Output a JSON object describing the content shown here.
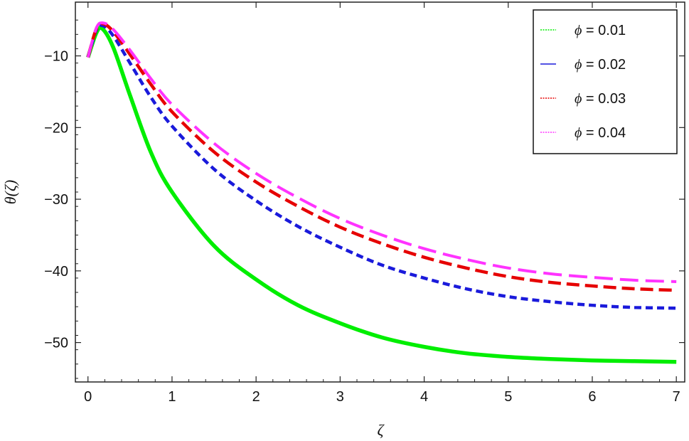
{
  "chart_data": {
    "type": "line",
    "xlabel": "ζ",
    "ylabel": "θ(ζ)",
    "xlim": [
      -0.15,
      7.1
    ],
    "ylim": [
      -55.5,
      -2.5
    ],
    "xticks": [
      0,
      1,
      2,
      3,
      4,
      5,
      6,
      7
    ],
    "yticks": [
      -10,
      -20,
      -30,
      -40,
      -50
    ],
    "tick_labels": {
      "x": [
        "0",
        "1",
        "2",
        "3",
        "4",
        "5",
        "6",
        "7"
      ],
      "y": [
        "−10",
        "−20",
        "−30",
        "−40",
        "−50"
      ]
    },
    "grid": false,
    "legend_position": "top-right",
    "series": [
      {
        "name": "ϕ = 0.01",
        "symbol": "ϕ",
        "value_text": " = 0.01",
        "color": "#00ee00",
        "style": "solid",
        "x": [
          0,
          0.1,
          0.17,
          0.3,
          0.5,
          0.75,
          1,
          1.5,
          2,
          2.5,
          3,
          3.5,
          4,
          4.5,
          5,
          5.5,
          6,
          6.5,
          7
        ],
        "y": [
          -10.2,
          -6.8,
          -6.2,
          -8.8,
          -15.5,
          -23.5,
          -29.0,
          -36.5,
          -41.2,
          -44.8,
          -47.3,
          -49.3,
          -50.6,
          -51.5,
          -52.0,
          -52.3,
          -52.5,
          -52.6,
          -52.7
        ]
      },
      {
        "name": "ϕ = 0.02",
        "symbol": "ϕ",
        "value_text": " = 0.02",
        "color": "#1a1adb",
        "style": "dashed-short",
        "x": [
          0,
          0.1,
          0.18,
          0.3,
          0.5,
          0.75,
          1,
          1.5,
          2,
          2.5,
          3,
          3.5,
          4,
          4.5,
          5,
          5.5,
          6,
          6.5,
          7
        ],
        "y": [
          -10.2,
          -6.4,
          -5.8,
          -7.2,
          -11.0,
          -15.8,
          -19.8,
          -25.8,
          -30.2,
          -33.8,
          -36.7,
          -39.2,
          -41.0,
          -42.5,
          -43.6,
          -44.3,
          -44.8,
          -45.1,
          -45.2
        ]
      },
      {
        "name": "ϕ = 0.03",
        "symbol": "ϕ",
        "value_text": " = 0.03",
        "color": "#e60000",
        "style": "dashed-medium",
        "x": [
          0,
          0.1,
          0.18,
          0.3,
          0.5,
          0.75,
          1,
          1.5,
          2,
          2.5,
          3,
          3.5,
          4,
          4.5,
          5,
          5.5,
          6,
          6.5,
          7
        ],
        "y": [
          -10.2,
          -6.2,
          -5.5,
          -6.6,
          -9.8,
          -14.0,
          -17.8,
          -23.4,
          -27.6,
          -31.0,
          -33.9,
          -36.2,
          -38.1,
          -39.6,
          -40.8,
          -41.6,
          -42.1,
          -42.5,
          -42.7
        ]
      },
      {
        "name": "ϕ = 0.04",
        "symbol": "ϕ",
        "value_text": " = 0.04",
        "color": "#ff33ff",
        "style": "dashed-long",
        "x": [
          0,
          0.1,
          0.18,
          0.3,
          0.5,
          0.75,
          1,
          1.5,
          2,
          2.5,
          3,
          3.5,
          4,
          4.5,
          5,
          5.5,
          6,
          6.5,
          7
        ],
        "y": [
          -10.2,
          -6.1,
          -5.4,
          -6.3,
          -9.2,
          -13.2,
          -16.8,
          -22.2,
          -26.4,
          -29.8,
          -32.7,
          -35.0,
          -36.9,
          -38.4,
          -39.6,
          -40.4,
          -40.9,
          -41.3,
          -41.5
        ]
      }
    ]
  }
}
